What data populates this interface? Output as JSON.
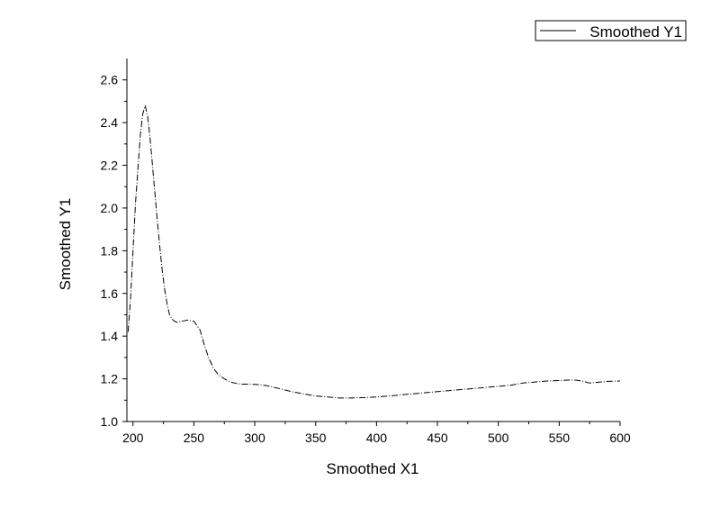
{
  "chart_data": {
    "type": "line",
    "xlabel": "Smoothed X1",
    "ylabel": "Smoothed Y1",
    "xlim": [
      195,
      600
    ],
    "ylim": [
      1.0,
      2.7
    ],
    "x_ticks": [
      200,
      250,
      300,
      350,
      400,
      450,
      500,
      550,
      600
    ],
    "y_ticks": [
      1.0,
      1.2,
      1.4,
      1.6,
      1.8,
      2.0,
      2.2,
      2.4,
      2.6
    ],
    "x_tick_labels": [
      "200",
      "250",
      "300",
      "350",
      "400",
      "450",
      "500",
      "550",
      "600"
    ],
    "y_tick_labels": [
      "1.0",
      "1.2",
      "1.4",
      "1.6",
      "1.8",
      "2.0",
      "2.2",
      "2.4",
      "2.6"
    ],
    "grid": false,
    "legend_position": "top-right",
    "series": [
      {
        "name": "Smoothed Y1",
        "color": "#000000",
        "x": [
          196,
          198,
          200,
          202,
          204,
          206,
          208,
          210,
          212,
          214,
          216,
          218,
          220,
          222,
          224,
          226,
          228,
          230,
          232,
          234,
          236,
          240,
          245,
          250,
          255,
          258,
          262,
          266,
          270,
          275,
          280,
          285,
          290,
          295,
          300,
          305,
          310,
          320,
          330,
          340,
          350,
          360,
          370,
          380,
          390,
          400,
          410,
          420,
          430,
          440,
          450,
          460,
          470,
          480,
          490,
          500,
          510,
          520,
          530,
          540,
          550,
          560,
          565,
          570,
          575,
          580,
          590,
          600
        ],
        "y": [
          1.42,
          1.58,
          1.8,
          2.02,
          2.18,
          2.34,
          2.44,
          2.48,
          2.43,
          2.33,
          2.2,
          2.07,
          1.94,
          1.82,
          1.71,
          1.62,
          1.55,
          1.5,
          1.48,
          1.47,
          1.465,
          1.47,
          1.475,
          1.47,
          1.43,
          1.37,
          1.3,
          1.25,
          1.22,
          1.2,
          1.185,
          1.178,
          1.175,
          1.175,
          1.174,
          1.172,
          1.168,
          1.155,
          1.14,
          1.13,
          1.12,
          1.115,
          1.11,
          1.11,
          1.112,
          1.115,
          1.12,
          1.125,
          1.13,
          1.135,
          1.14,
          1.145,
          1.15,
          1.155,
          1.16,
          1.165,
          1.17,
          1.18,
          1.185,
          1.19,
          1.192,
          1.195,
          1.193,
          1.188,
          1.18,
          1.183,
          1.188,
          1.19
        ]
      }
    ]
  }
}
